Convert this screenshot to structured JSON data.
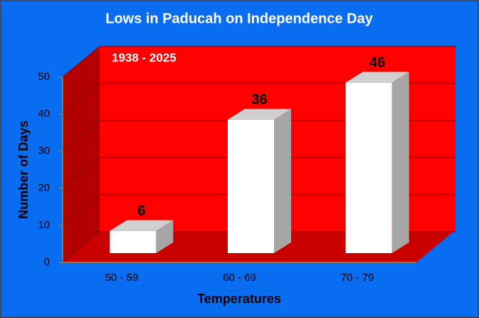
{
  "chart_data": {
    "type": "bar3d",
    "title": "Lows in Paducah on Independence Day",
    "annotation": "1938 - 2025",
    "categories": [
      "50 - 59",
      "60 - 69",
      "70 - 79"
    ],
    "values": [
      6,
      36,
      46
    ],
    "color": "#ffffff",
    "xlabel": "Temperatures",
    "ylabel": "Number of Days",
    "ylim": [
      0,
      50
    ],
    "yticks": [
      0,
      10,
      20,
      30,
      40,
      50
    ],
    "grid": true
  }
}
